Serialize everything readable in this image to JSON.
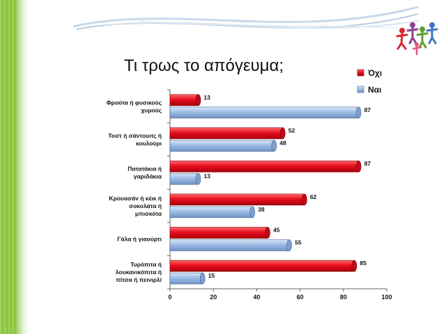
{
  "chart_data": {
    "type": "bar",
    "orientation": "horizontal",
    "title": "Τι τρως το απόγευμα;",
    "categories": [
      [
        "Φρούτα ή φυσικούς",
        "χυμούς"
      ],
      [
        "Τοστ ή σάντουιτς ή",
        "κουλούρι"
      ],
      [
        "Πατατάκια ή",
        "γαριδάκια"
      ],
      [
        "Κρουασάν ή κέικ ή",
        "σοκολάτα ή",
        "μπισκότα"
      ],
      [
        "Γάλα ή γιαούρτι"
      ],
      [
        "Τυρόπιτα ή",
        "λουκανικόπιτα ή",
        "πίτσα ή πεινιρλί"
      ]
    ],
    "series": [
      {
        "name": "Όχι",
        "color": "#e8101e",
        "values": [
          13,
          52,
          87,
          62,
          45,
          85
        ]
      },
      {
        "name": "Ναι",
        "color": "#9dbde6",
        "values": [
          87,
          48,
          13,
          38,
          55,
          15
        ]
      }
    ],
    "xlim": [
      0,
      100
    ],
    "xticks": [
      "0",
      "20",
      "40",
      "60",
      "80",
      "100"
    ],
    "legend_position": "top-right",
    "grid": false
  }
}
